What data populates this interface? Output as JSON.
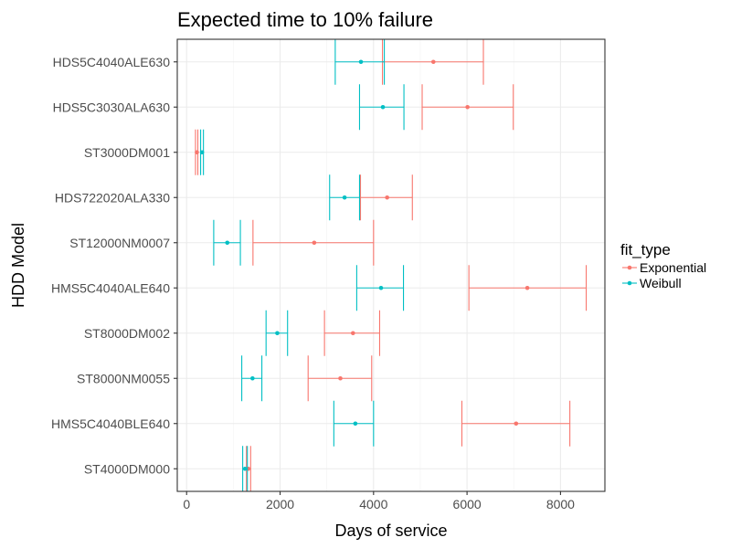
{
  "chart_data": {
    "type": "errorbar",
    "title": "Expected time to 10% failure",
    "xlabel": "Days of service",
    "ylabel": "HDD Model",
    "xlim": [
      -200,
      8950
    ],
    "xticks": [
      0,
      2000,
      4000,
      6000,
      8000
    ],
    "x_tick_labels": [
      "0",
      "2000",
      "4000",
      "6000",
      "8000"
    ],
    "grid": true,
    "legend_placement": "right",
    "legend_title": "fit_type",
    "categories": [
      "HDS5C4040ALE630",
      "HDS5C3030ALA630",
      "ST3000DM001",
      "HDS722020ALA330",
      "ST12000NM0007",
      "HMS5C4040ALE640",
      "ST8000DM002",
      "ST8000NM0055",
      "HMS5C4040BLE640",
      "ST4000DM000"
    ],
    "series": [
      {
        "name": "Exponential",
        "color": "#F8766D",
        "estimate": [
          5280,
          6010,
          220,
          4290,
          2730,
          7290,
          3560,
          3290,
          7050,
          1320
        ],
        "lower": [
          4190,
          5040,
          190,
          3720,
          1420,
          6040,
          2950,
          2600,
          5890,
          1280
        ],
        "upper": [
          6350,
          6990,
          240,
          4830,
          4000,
          8550,
          4130,
          3960,
          8200,
          1370
        ]
      },
      {
        "name": "Weibull",
        "color": "#00BFC4",
        "estimate": [
          3730,
          4200,
          330,
          3380,
          870,
          4160,
          1940,
          1410,
          3610,
          1250
        ],
        "lower": [
          3180,
          3700,
          300,
          3060,
          580,
          3640,
          1700,
          1180,
          3150,
          1200
        ],
        "upper": [
          4230,
          4650,
          360,
          3700,
          1150,
          4640,
          2160,
          1610,
          4000,
          1300
        ]
      }
    ]
  }
}
